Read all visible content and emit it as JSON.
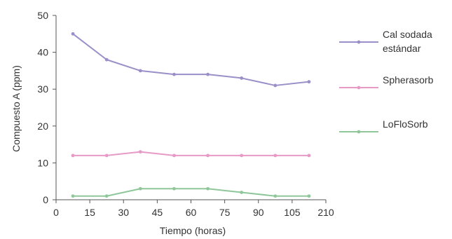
{
  "chart_data": {
    "type": "line",
    "title": "",
    "xlabel": "Tiempo (horas)",
    "ylabel": "Compuesto A (ppm)",
    "x_tick_labels": [
      "0",
      "15",
      "30",
      "45",
      "60",
      "75",
      "90",
      "105",
      "210"
    ],
    "categories": [
      "7.5",
      "22.5",
      "37.5",
      "52.5",
      "67.5",
      "82.5",
      "97.5",
      "112.5"
    ],
    "y_ticks": [
      "0",
      "10",
      "20",
      "30",
      "40",
      "50"
    ],
    "ylim": [
      0,
      50
    ],
    "grid": false,
    "legend_position": "right",
    "series": [
      {
        "name": "Cal sodada estándar",
        "legend_lines": [
          "Cal sodada",
          "estándar"
        ],
        "color": "#9b8fc9",
        "values": [
          45,
          38,
          35,
          34,
          34,
          33,
          31,
          32
        ]
      },
      {
        "name": "Spherasorb",
        "legend_lines": [
          "Spherasorb"
        ],
        "color": "#e79ac6",
        "values": [
          12,
          12,
          13,
          12,
          12,
          12,
          12,
          12
        ]
      },
      {
        "name": "LoFloSorb",
        "legend_lines": [
          "LoFloSorb"
        ],
        "color": "#8fc79a",
        "values": [
          1,
          1,
          3,
          3,
          3,
          2,
          1,
          1
        ]
      }
    ]
  }
}
